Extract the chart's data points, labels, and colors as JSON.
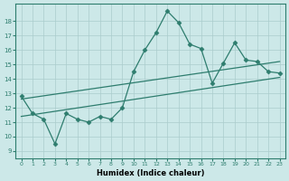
{
  "xlabel": "Humidex (Indice chaleur)",
  "x_values": [
    0,
    1,
    2,
    3,
    4,
    5,
    6,
    7,
    8,
    9,
    10,
    11,
    12,
    13,
    14,
    15,
    16,
    17,
    18,
    19,
    20,
    21,
    22,
    23
  ],
  "y_values": [
    12.8,
    11.6,
    11.2,
    9.5,
    11.6,
    11.2,
    11.0,
    11.4,
    11.2,
    12.0,
    14.5,
    16.0,
    17.2,
    18.7,
    17.9,
    16.4,
    16.1,
    13.7,
    15.1,
    16.5,
    15.3,
    15.2,
    14.5,
    14.4
  ],
  "trend1_x": [
    0,
    23
  ],
  "trend1_y": [
    11.4,
    14.1
  ],
  "trend2_x": [
    0,
    23
  ],
  "trend2_y": [
    12.6,
    15.2
  ],
  "bg_color": "#cce8e8",
  "grid_color": "#aacccc",
  "line_color": "#2e7d6e",
  "xlim": [
    -0.5,
    23.5
  ],
  "ylim": [
    8.5,
    19.2
  ],
  "yticks": [
    9,
    10,
    11,
    12,
    13,
    14,
    15,
    16,
    17,
    18
  ],
  "xticks": [
    0,
    1,
    2,
    3,
    4,
    5,
    6,
    7,
    8,
    9,
    10,
    11,
    12,
    13,
    14,
    15,
    16,
    17,
    18,
    19,
    20,
    21,
    22,
    23
  ]
}
